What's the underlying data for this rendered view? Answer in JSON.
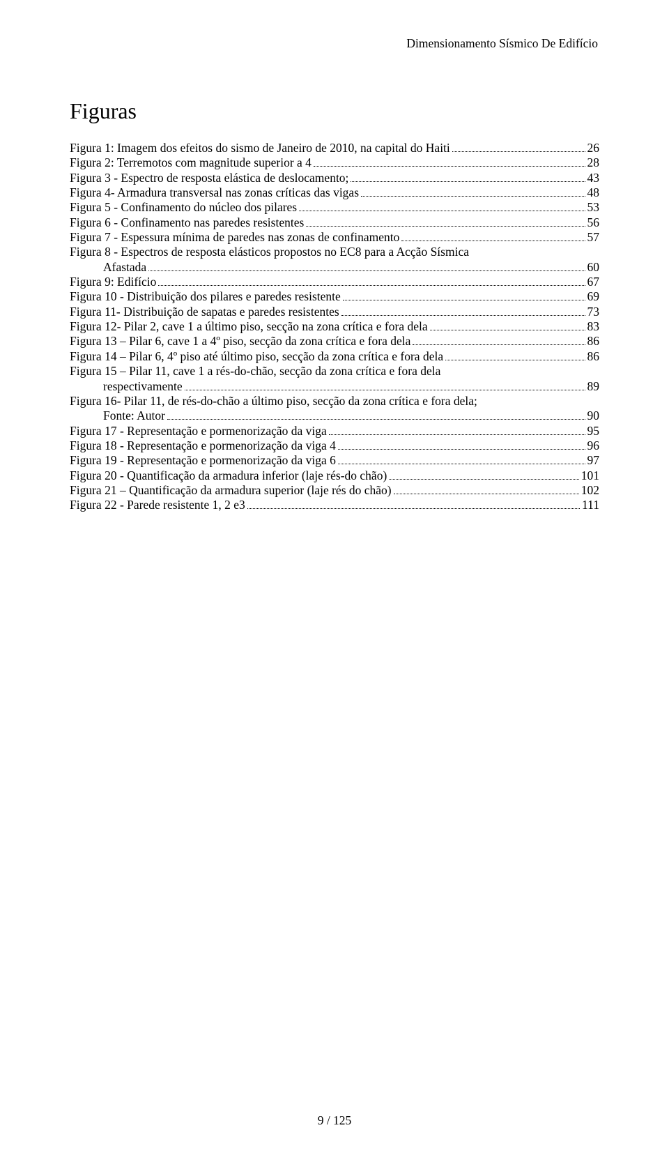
{
  "header": "Dimensionamento Sísmico De Edifício",
  "title": "Figuras",
  "footer": "9 / 125",
  "entries": [
    {
      "lines": [
        "Figura 1: Imagem dos efeitos do sismo de Janeiro de 2010, na capital do Haiti"
      ],
      "page": "26"
    },
    {
      "lines": [
        "Figura 2: Terremotos com magnitude superior a 4"
      ],
      "page": "28"
    },
    {
      "lines": [
        "Figura 3 - Espectro de resposta elástica de deslocamento;"
      ],
      "page": "43"
    },
    {
      "lines": [
        "Figura 4- Armadura transversal nas zonas críticas das vigas"
      ],
      "page": "48"
    },
    {
      "lines": [
        "Figura 5 - Confinamento do núcleo dos pilares"
      ],
      "page": "53"
    },
    {
      "lines": [
        "Figura 6 - Confinamento nas paredes resistentes"
      ],
      "page": "56"
    },
    {
      "lines": [
        "Figura 7 - Espessura mínima de paredes nas zonas de confinamento"
      ],
      "page": "57"
    },
    {
      "lines": [
        "Figura 8 - Espectros de resposta elásticos propostos no EC8 para a Acção Sísmica",
        "Afastada"
      ],
      "page": "60"
    },
    {
      "lines": [
        "Figura 9: Edifício"
      ],
      "page": "67"
    },
    {
      "lines": [
        "Figura 10 - Distribuição dos pilares e paredes resistente"
      ],
      "page": "69"
    },
    {
      "lines": [
        "Figura 11- Distribuição de sapatas e paredes resistentes"
      ],
      "page": "73"
    },
    {
      "lines": [
        "Figura 12- Pilar 2, cave 1 a último piso, secção na zona crítica e fora dela"
      ],
      "page": "83"
    },
    {
      "lines": [
        "Figura 13 – Pilar 6, cave 1 a 4º piso, secção da zona crítica e fora dela"
      ],
      "page": "86"
    },
    {
      "lines": [
        "Figura 14 – Pilar 6, 4º piso até último piso, secção da zona crítica e fora dela"
      ],
      "page": "86"
    },
    {
      "lines": [
        "Figura 15 – Pilar 11, cave 1 a rés-do-chão, secção da zona crítica e fora dela",
        "respectivamente"
      ],
      "page": "89"
    },
    {
      "lines": [
        "Figura 16- Pilar 11, de rés-do-chão a último piso, secção da zona crítica e fora dela;",
        "Fonte: Autor"
      ],
      "page": "90"
    },
    {
      "lines": [
        "Figura 17 - Representação e pormenorização da viga"
      ],
      "page": "95"
    },
    {
      "lines": [
        "Figura 18 - Representação e pormenorização da viga 4"
      ],
      "page": "96"
    },
    {
      "lines": [
        "Figura 19 - Representação e pormenorização da viga 6"
      ],
      "page": "97"
    },
    {
      "lines": [
        "Figura 20 - Quantificação da armadura inferior (laje rés-do chão)"
      ],
      "page": "101"
    },
    {
      "lines": [
        "Figura 21 – Quantificação da armadura superior (laje rés do chão)"
      ],
      "page": "102"
    },
    {
      "lines": [
        "Figura 22 - Parede resistente 1, 2 e3"
      ],
      "page": "111"
    }
  ]
}
